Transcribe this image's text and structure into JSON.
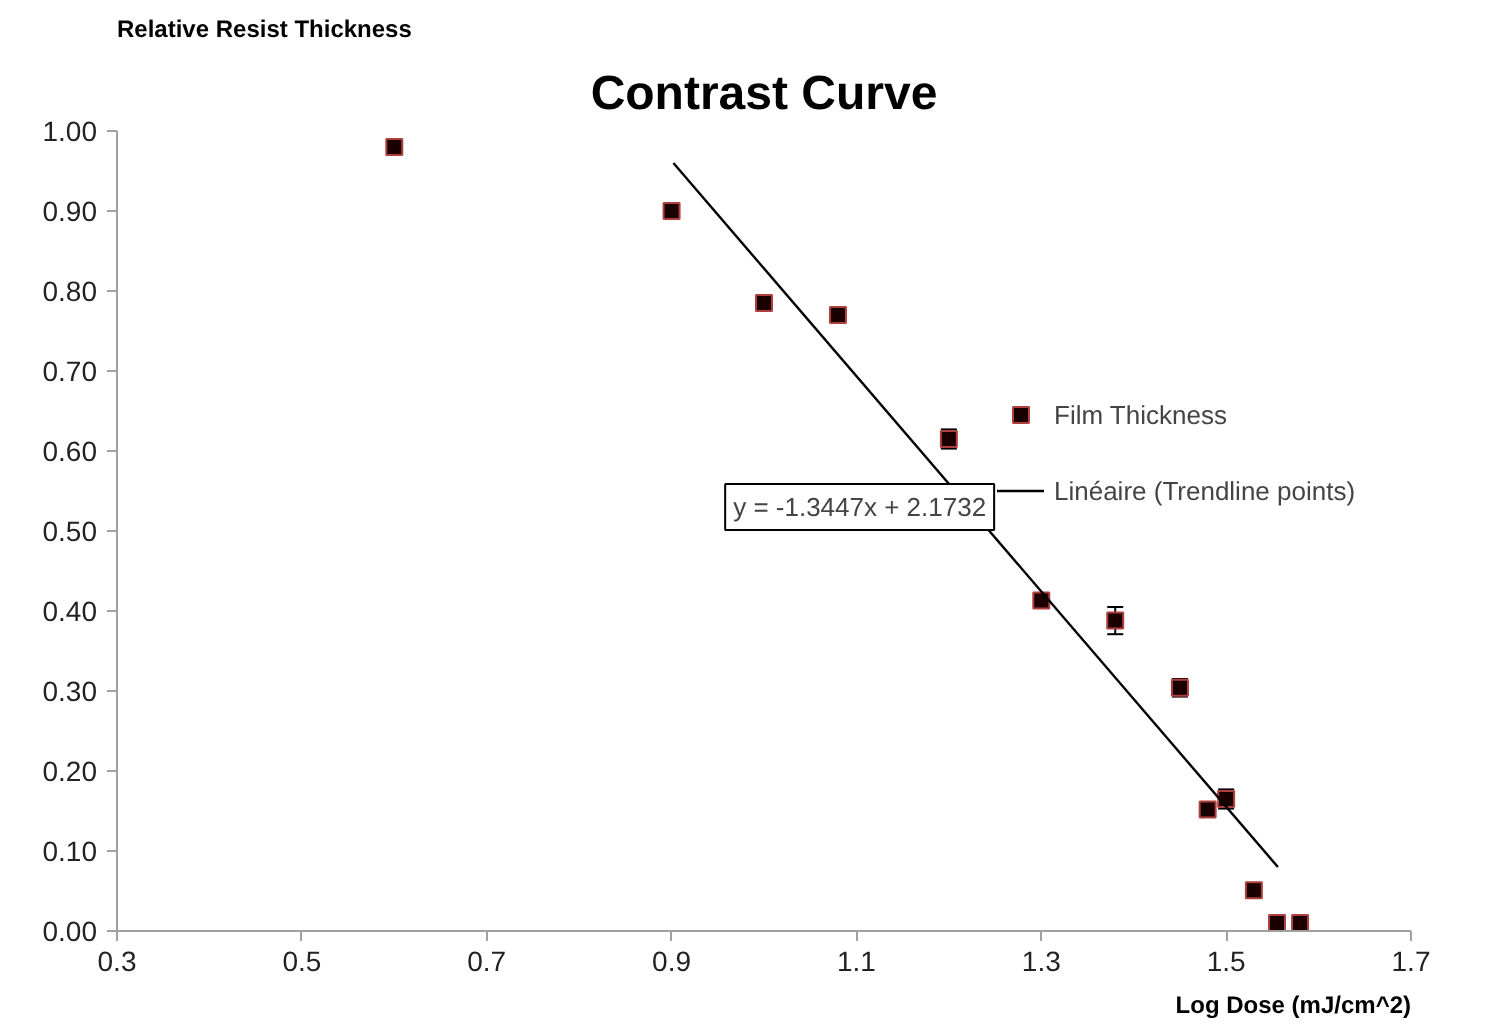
{
  "chart_data": {
    "type": "scatter",
    "title": "Contrast Curve",
    "xlabel": "Log Dose (mJ/cm^2)",
    "ylabel": "Relative Resist Thickness",
    "annotations": [
      "y = -1.3447x + 2.1732"
    ],
    "series": [
      {
        "name": "Film Thickness",
        "type": "scatter",
        "color": "#1a0000",
        "marker": "square",
        "x": [
          0.6,
          0.9,
          1.0,
          1.08,
          1.2,
          1.3,
          1.38,
          1.45,
          1.48,
          1.5,
          1.53,
          1.555,
          1.58
        ],
        "values": [
          0.98,
          0.9,
          0.785,
          0.77,
          0.615,
          0.413,
          0.388,
          0.304,
          0.152,
          0.165,
          0.051,
          0.01,
          0.01
        ],
        "errors": [
          null,
          null,
          null,
          null,
          0.012,
          null,
          0.017,
          0.011,
          null,
          0.012,
          null,
          null,
          null
        ]
      },
      {
        "name": "Linéaire (Trendline points)",
        "type": "line",
        "color": "#000000",
        "marker": "none",
        "line_style": "solid",
        "x": [
          0.902,
          1.556
        ],
        "values": [
          0.96,
          0.08
        ]
      }
    ],
    "xlim": [
      0.3,
      1.7
    ],
    "ylim": [
      0,
      1.0
    ],
    "xticks": [
      0.3,
      0.5,
      0.7,
      0.9,
      1.1,
      1.3,
      1.5,
      1.7
    ],
    "yticks": [
      {
        "value": 0,
        "label": "0.00"
      },
      {
        "value": 0.1,
        "label": "0.10"
      },
      {
        "value": 0.2,
        "label": "0.20"
      },
      {
        "value": 0.3,
        "label": "0.30"
      },
      {
        "value": 0.4,
        "label": "0.40"
      },
      {
        "value": 0.5,
        "label": "0.50"
      },
      {
        "value": 0.6,
        "label": "0.60"
      },
      {
        "value": 0.7,
        "label": "0.70"
      },
      {
        "value": 0.8,
        "label": "0.80"
      },
      {
        "value": 0.9,
        "label": "0.90"
      },
      {
        "value": 1.0,
        "label": "1.00"
      }
    ],
    "grid": false,
    "legend": "right"
  }
}
